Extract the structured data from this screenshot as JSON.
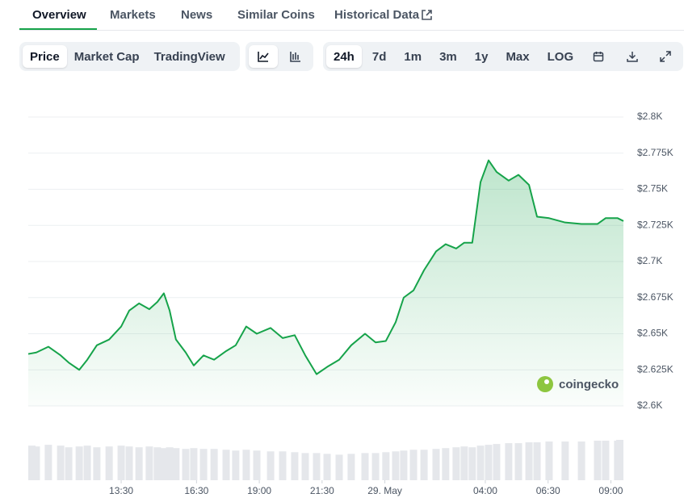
{
  "tabs": [
    "Overview",
    "Markets",
    "News",
    "Similar Coins",
    "Historical Data"
  ],
  "chart_controls": {
    "types": [
      "Price",
      "Market Cap",
      "TradingView"
    ],
    "ranges": [
      "24h",
      "7d",
      "1m",
      "3m",
      "1y",
      "Max",
      "LOG"
    ]
  },
  "watermark": "coingecko",
  "chart_data": {
    "type": "line",
    "x": [
      9.8,
      10.12,
      10.6,
      11.09,
      11.41,
      11.83,
      12.15,
      12.53,
      13.02,
      13.5,
      13.82,
      14.21,
      14.62,
      14.94,
      15.2,
      15.43,
      15.68,
      16.07,
      16.39,
      16.78,
      17.2,
      17.68,
      18.06,
      18.48,
      18.9,
      19.45,
      19.93,
      20.41,
      20.83,
      21.28,
      21.7,
      22.18,
      22.66,
      23.21,
      23.63,
      24.04,
      24.43,
      24.75,
      25.14,
      25.56,
      26.04,
      26.42,
      26.84,
      27.16,
      27.48,
      27.81,
      28.13,
      28.45,
      28.93,
      29.32,
      29.74,
      30.06,
      30.54,
      31.18,
      31.83,
      32.47,
      32.79,
      33.27,
      33.5
    ],
    "series": [
      {
        "color": "#16a34a",
        "values": [
          2636,
          2637,
          2641,
          2635,
          2630,
          2625,
          2632,
          2642,
          2646,
          2655,
          2666,
          2671,
          2667,
          2672,
          2678,
          2666,
          2646,
          2637,
          2628,
          2635,
          2632,
          2638,
          2642,
          2655,
          2650,
          2654,
          2647,
          2649,
          2635,
          2622,
          2627,
          2632,
          2642,
          2650,
          2644,
          2645,
          2658,
          2675,
          2680,
          2694,
          2707,
          2712,
          2709,
          2713,
          2713,
          2755,
          2770,
          2762,
          2756,
          2760,
          2753,
          2731,
          2730,
          2727,
          2726,
          2726,
          2730,
          2730,
          2728
        ]
      }
    ],
    "volume": [
      42,
      41,
      43,
      42,
      40,
      41,
      42,
      40,
      41,
      42,
      41,
      40,
      41,
      40,
      39,
      40,
      39,
      38,
      39,
      38,
      38,
      37,
      36,
      37,
      36,
      35,
      35,
      34,
      33,
      33,
      32,
      31,
      32,
      33,
      33,
      34,
      35,
      36,
      37,
      37,
      38,
      39,
      40,
      41,
      40,
      42,
      43,
      44,
      45,
      45,
      46,
      46,
      47,
      47,
      47,
      48,
      48,
      48,
      49
    ],
    "xlim": [
      9.8,
      33.5
    ],
    "xticks": [
      {
        "value": 13.5,
        "label": "13:30"
      },
      {
        "value": 16.5,
        "label": "16:30"
      },
      {
        "value": 19,
        "label": "19:00"
      },
      {
        "value": 21.5,
        "label": "21:30"
      },
      {
        "value": 24,
        "label": "29. May"
      },
      {
        "value": 28,
        "label": "04:00"
      },
      {
        "value": 30.5,
        "label": "06:30"
      },
      {
        "value": 33,
        "label": "09:00"
      }
    ],
    "ylim": [
      2600,
      2800
    ],
    "yticks": [
      {
        "value": 2600,
        "label": "$2.6K"
      },
      {
        "value": 2625,
        "label": "$2.625K"
      },
      {
        "value": 2650,
        "label": "$2.65K"
      },
      {
        "value": 2675,
        "label": "$2.675K"
      },
      {
        "value": 2700,
        "label": "$2.7K"
      },
      {
        "value": 2725,
        "label": "$2.725K"
      },
      {
        "value": 2750,
        "label": "$2.75K"
      },
      {
        "value": 2775,
        "label": "$2.775K"
      },
      {
        "value": 2800,
        "label": "$2.8K"
      }
    ],
    "grid": true
  }
}
